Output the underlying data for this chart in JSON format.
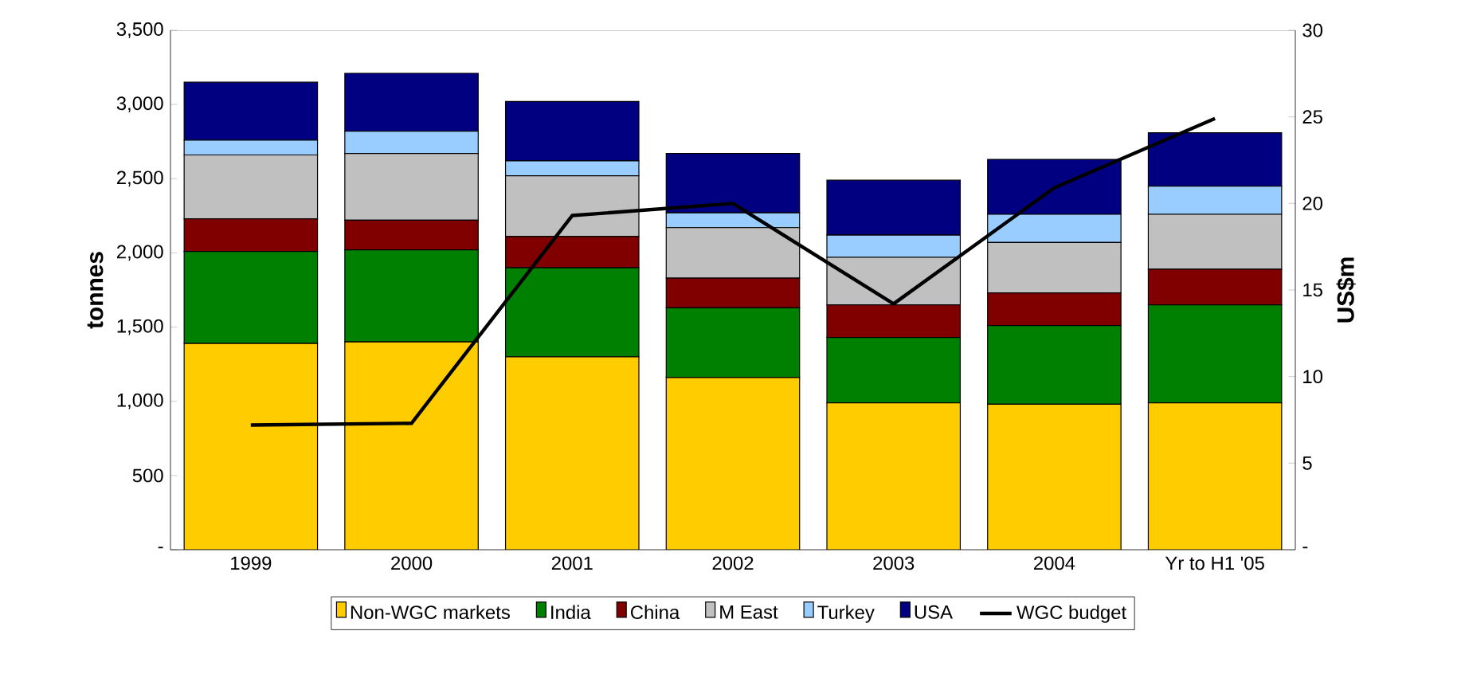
{
  "chart_data": {
    "type": "bar",
    "stacked": true,
    "ylabel": "tonnes",
    "y2label": "US$m",
    "categories": [
      "1999",
      "2000",
      "2001",
      "2002",
      "2003",
      "2004",
      "Yr to H1 '05"
    ],
    "series": [
      {
        "name": "Non-WGC markets",
        "color": "#ffcc00",
        "values": [
          1390,
          1400,
          1300,
          1160,
          990,
          980,
          990
        ]
      },
      {
        "name": "India",
        "color": "#008000",
        "values": [
          620,
          620,
          600,
          470,
          440,
          530,
          660
        ]
      },
      {
        "name": "China",
        "color": "#800000",
        "values": [
          220,
          200,
          210,
          200,
          220,
          220,
          240
        ]
      },
      {
        "name": "M East",
        "color": "#c0c0c0",
        "values": [
          430,
          450,
          410,
          340,
          320,
          340,
          370
        ]
      },
      {
        "name": "Turkey",
        "color": "#99ccff",
        "values": [
          100,
          150,
          100,
          100,
          150,
          190,
          190
        ]
      },
      {
        "name": "USA",
        "color": "#000080",
        "values": [
          390,
          390,
          400,
          400,
          370,
          370,
          360
        ]
      },
      {
        "name": "WGC budget",
        "type": "line",
        "axis": "y2",
        "color": "#000000",
        "values": [
          7.2,
          7.3,
          19.3,
          20.0,
          14.2,
          20.9,
          24.9
        ]
      }
    ],
    "ylim": [
      0,
      3500
    ],
    "yticks": [
      {
        "value": 0,
        "label": "-"
      },
      {
        "value": 500,
        "label": "500"
      },
      {
        "value": 1000,
        "label": "1,000"
      },
      {
        "value": 1500,
        "label": "1,500"
      },
      {
        "value": 2000,
        "label": "2,000"
      },
      {
        "value": 2500,
        "label": "2,500"
      },
      {
        "value": 3000,
        "label": "3,000"
      },
      {
        "value": 3500,
        "label": "3,500"
      }
    ],
    "y2lim": [
      0,
      30
    ],
    "y2ticks": [
      {
        "value": 0,
        "label": "-"
      },
      5,
      10,
      15,
      20,
      25,
      30
    ],
    "legend": "bottom"
  }
}
